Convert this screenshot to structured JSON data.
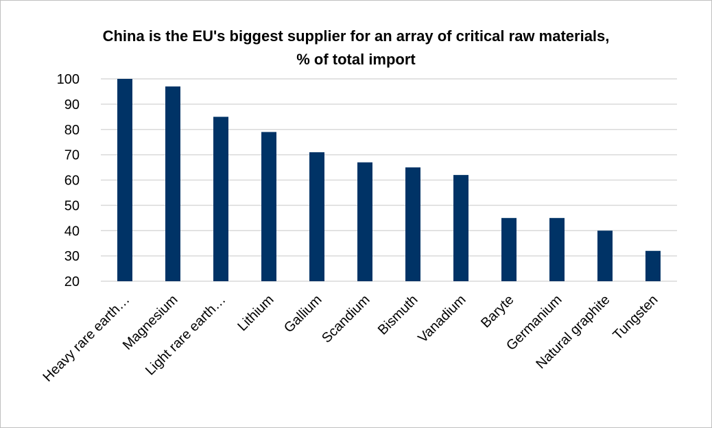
{
  "chart_data": {
    "type": "bar",
    "title_lines": [
      "China is the EU's biggest supplier for an array of critical raw materials,",
      "% of total import"
    ],
    "categories": [
      "Heavy rare earth…",
      "Magnesium",
      "Light rare earth…",
      "Lithium",
      "Gallium",
      "Scandium",
      "Bismuth",
      "Vanadium",
      "Baryte",
      "Germanium",
      "Natural graphite",
      "Tungsten"
    ],
    "values": [
      100,
      97,
      85,
      79,
      71,
      67,
      65,
      62,
      45,
      45,
      40,
      32
    ],
    "xlabel": "",
    "ylabel": "",
    "ylim": [
      20,
      100
    ],
    "yticks": [
      20,
      30,
      40,
      50,
      60,
      70,
      80,
      90,
      100
    ],
    "grid": true,
    "legend": "none",
    "bar_color": "#003366",
    "grid_color": "#d9d9d9"
  }
}
